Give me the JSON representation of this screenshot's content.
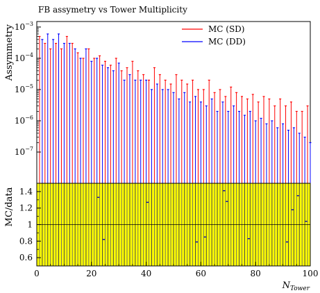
{
  "chart_data": [
    {
      "type": "bar",
      "title": "FB assymetry vs Tower Multiplicity",
      "ylabel": "Assymmetry",
      "xlabel": "",
      "y_scale": "log",
      "ylim": [
        1e-08,
        0.0015
      ],
      "xlim": [
        0,
        100
      ],
      "legend_position": "top-right",
      "y_ticks": [
        {
          "value": 1e-07,
          "base": "10",
          "exp": "−7"
        },
        {
          "value": 1e-06,
          "base": "10",
          "exp": "−6"
        },
        {
          "value": 1e-05,
          "base": "10",
          "exp": "−5"
        },
        {
          "value": 0.0001,
          "base": "10",
          "exp": "−4"
        },
        {
          "value": 0.001,
          "base": "10",
          "exp": "−3"
        }
      ],
      "series": [
        {
          "name": "MC (SD)",
          "color": "#ff0000",
          "x": [
            1,
            3,
            5,
            7,
            9,
            11,
            13,
            15,
            17,
            19,
            21,
            23,
            25,
            27,
            29,
            31,
            33,
            35,
            37,
            39,
            41,
            43,
            45,
            47,
            49,
            51,
            53,
            55,
            57,
            59,
            61,
            63,
            65,
            67,
            69,
            71,
            73,
            75,
            77,
            79,
            81,
            83,
            85,
            87,
            89,
            91,
            93,
            95,
            97,
            99
          ],
          "values": [
            0.0005,
            0.0003,
            0.0002,
            0.0003,
            0.0002,
            0.0005,
            0.0003,
            0.00015,
            0.0001,
            0.0002,
            0.0001,
            0.00012,
            8e-05,
            6e-05,
            0.0001,
            4e-05,
            5e-05,
            8e-05,
            4e-05,
            3e-05,
            2e-05,
            5e-05,
            3e-05,
            2e-05,
            1.5e-05,
            3e-05,
            2e-05,
            1.5e-05,
            2e-05,
            1e-05,
            1e-05,
            2e-05,
            8e-06,
            1e-05,
            6e-06,
            1.2e-05,
            8e-06,
            6e-06,
            5e-06,
            7e-06,
            4e-06,
            6e-06,
            5e-06,
            3e-06,
            5e-06,
            3e-06,
            4e-06,
            2e-06,
            2e-06,
            3e-06
          ]
        },
        {
          "name": "MC (DD)",
          "color": "#0000ff",
          "x": [
            2,
            4,
            6,
            8,
            10,
            12,
            14,
            16,
            18,
            20,
            22,
            24,
            26,
            28,
            30,
            32,
            34,
            36,
            38,
            40,
            42,
            44,
            46,
            48,
            50,
            52,
            54,
            56,
            58,
            60,
            62,
            64,
            66,
            68,
            70,
            72,
            74,
            76,
            78,
            80,
            82,
            84,
            86,
            88,
            90,
            92,
            94,
            96,
            98,
            100
          ],
          "values": [
            0.0004,
            0.0006,
            0.0004,
            0.0006,
            0.0003,
            0.0003,
            0.0002,
            0.0001,
            0.0002,
            8e-05,
            0.0001,
            6e-05,
            5e-05,
            4e-05,
            7e-05,
            2e-05,
            3e-05,
            2e-05,
            2e-05,
            2e-05,
            1e-05,
            1.5e-05,
            1e-05,
            1e-05,
            8e-06,
            5e-06,
            8e-06,
            4e-06,
            6e-06,
            4e-06,
            3e-06,
            5e-06,
            2e-06,
            4e-06,
            2e-06,
            3e-06,
            2e-06,
            1.5e-06,
            2e-06,
            1e-06,
            1.2e-06,
            8e-07,
            1e-06,
            6e-07,
            8e-07,
            5e-07,
            6e-07,
            4e-07,
            3e-07,
            2e-07
          ]
        }
      ]
    },
    {
      "type": "bar",
      "title": "",
      "ylabel": "MC/data",
      "xlabel": "N",
      "xlabel_subscript": "Tower",
      "ylim": [
        0.5,
        1.5
      ],
      "xlim": [
        0,
        100
      ],
      "y_ticks": [
        "0.6",
        "0.8",
        "1",
        "1.2",
        "1.4"
      ],
      "x_ticks": [
        "0",
        "20",
        "40",
        "60",
        "80",
        "100"
      ],
      "reference_line": 1,
      "band_color": "#ffff00",
      "markers": [
        {
          "x": 22.5,
          "y": 1.33
        },
        {
          "x": 24.5,
          "y": 0.82
        },
        {
          "x": 40.5,
          "y": 1.27
        },
        {
          "x": 58.5,
          "y": 0.79
        },
        {
          "x": 61.5,
          "y": 0.85
        },
        {
          "x": 68.5,
          "y": 1.41
        },
        {
          "x": 69.5,
          "y": 1.28
        },
        {
          "x": 77.5,
          "y": 0.83
        },
        {
          "x": 91.5,
          "y": 0.79
        },
        {
          "x": 93.5,
          "y": 1.18
        },
        {
          "x": 95.5,
          "y": 1.35
        },
        {
          "x": 98.5,
          "y": 1.04
        }
      ]
    }
  ]
}
